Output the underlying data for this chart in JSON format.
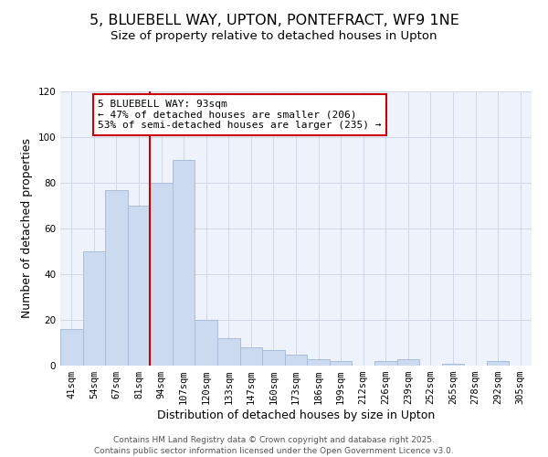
{
  "title": "5, BLUEBELL WAY, UPTON, PONTEFRACT, WF9 1NE",
  "subtitle": "Size of property relative to detached houses in Upton",
  "xlabel": "Distribution of detached houses by size in Upton",
  "ylabel": "Number of detached properties",
  "bar_labels": [
    "41sqm",
    "54sqm",
    "67sqm",
    "81sqm",
    "94sqm",
    "107sqm",
    "120sqm",
    "133sqm",
    "147sqm",
    "160sqm",
    "173sqm",
    "186sqm",
    "199sqm",
    "212sqm",
    "226sqm",
    "239sqm",
    "252sqm",
    "265sqm",
    "278sqm",
    "292sqm",
    "305sqm"
  ],
  "bar_values": [
    16,
    50,
    77,
    70,
    80,
    90,
    20,
    12,
    8,
    7,
    5,
    3,
    2,
    0,
    2,
    3,
    0,
    1,
    0,
    2,
    0
  ],
  "bar_color": "#ccdaf0",
  "bar_edge_color": "#aabdd8",
  "vline_color": "#cc0000",
  "annotation_text": "5 BLUEBELL WAY: 93sqm\n← 47% of detached houses are smaller (206)\n53% of semi-detached houses are larger (235) →",
  "annotation_box_color": "#ffffff",
  "annotation_box_edge_color": "#cc0000",
  "ylim": [
    0,
    120
  ],
  "yticks": [
    0,
    20,
    40,
    60,
    80,
    100,
    120
  ],
  "grid_color": "#d0d8e8",
  "bg_color": "#eef2fa",
  "footer1": "Contains HM Land Registry data © Crown copyright and database right 2025.",
  "footer2": "Contains public sector information licensed under the Open Government Licence v3.0.",
  "title_fontsize": 11.5,
  "subtitle_fontsize": 9.5,
  "axis_label_fontsize": 9,
  "tick_fontsize": 7.5,
  "annotation_fontsize": 8,
  "footer_fontsize": 6.5
}
